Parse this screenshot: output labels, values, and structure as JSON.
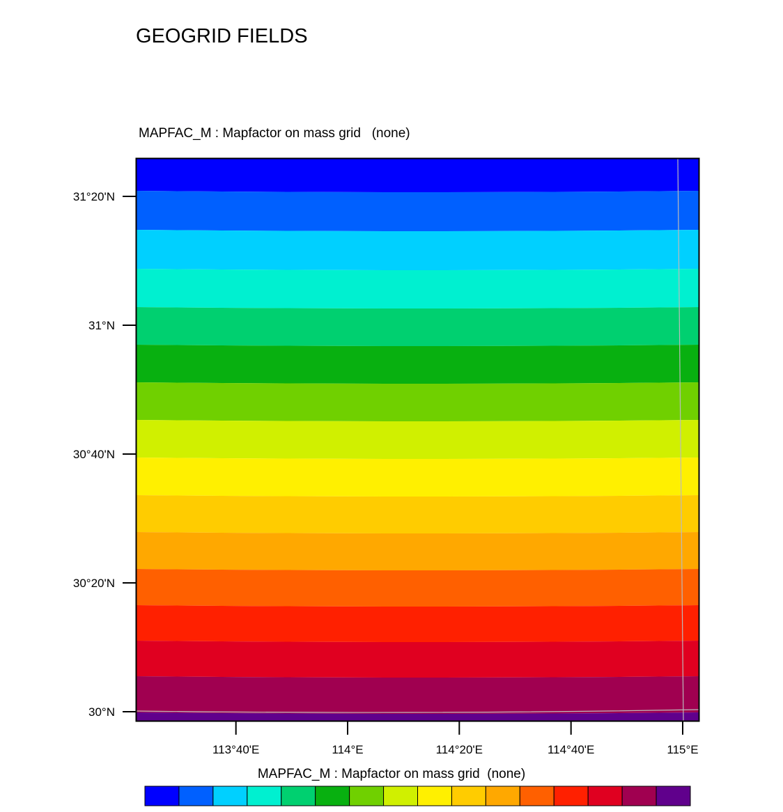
{
  "title": "GEOGRID FIELDS",
  "subtitle": "MAPFAC_M : Mapfactor on mass grid   (none)",
  "colorbar_title": "MAPFAC_M : Mapfactor on mass grid  (none)",
  "chart_data": {
    "type": "heatmap",
    "variable": "MAPFAC_M",
    "long_name": "Mapfactor on mass grid",
    "units": "(none)",
    "y_ticks": [
      {
        "label": "31°20'N",
        "lat": 31.3333
      },
      {
        "label": "31°N",
        "lat": 31.0
      },
      {
        "label": "30°40'N",
        "lat": 30.6667
      },
      {
        "label": "30°20'N",
        "lat": 30.3333
      },
      {
        "label": "30°N",
        "lat": 30.0
      }
    ],
    "x_ticks": [
      {
        "label": "113°40'E",
        "lon": 113.6667
      },
      {
        "label": "114°E",
        "lon": 114.0
      },
      {
        "label": "114°20'E",
        "lon": 114.3333
      },
      {
        "label": "114°40'E",
        "lon": 114.6667
      },
      {
        "label": "115°E",
        "lon": 115.0
      }
    ],
    "lat_range": [
      29.975,
      31.432
    ],
    "lon_range": [
      113.37,
      115.05
    ],
    "colormap": [
      "#0000ff",
      "#0060ff",
      "#00d0ff",
      "#00f0d0",
      "#00d070",
      "#08b010",
      "#70d000",
      "#d0f000",
      "#fff000",
      "#ffcc00",
      "#ffa800",
      "#ff6000",
      "#ff2000",
      "#e00020",
      "#a00050",
      "#60008c"
    ],
    "colorbar_labels": [],
    "bands_top_to_bottom": 16,
    "note_lines": "thin grey boundary line near 115°E and lat ≈ 30°N"
  }
}
